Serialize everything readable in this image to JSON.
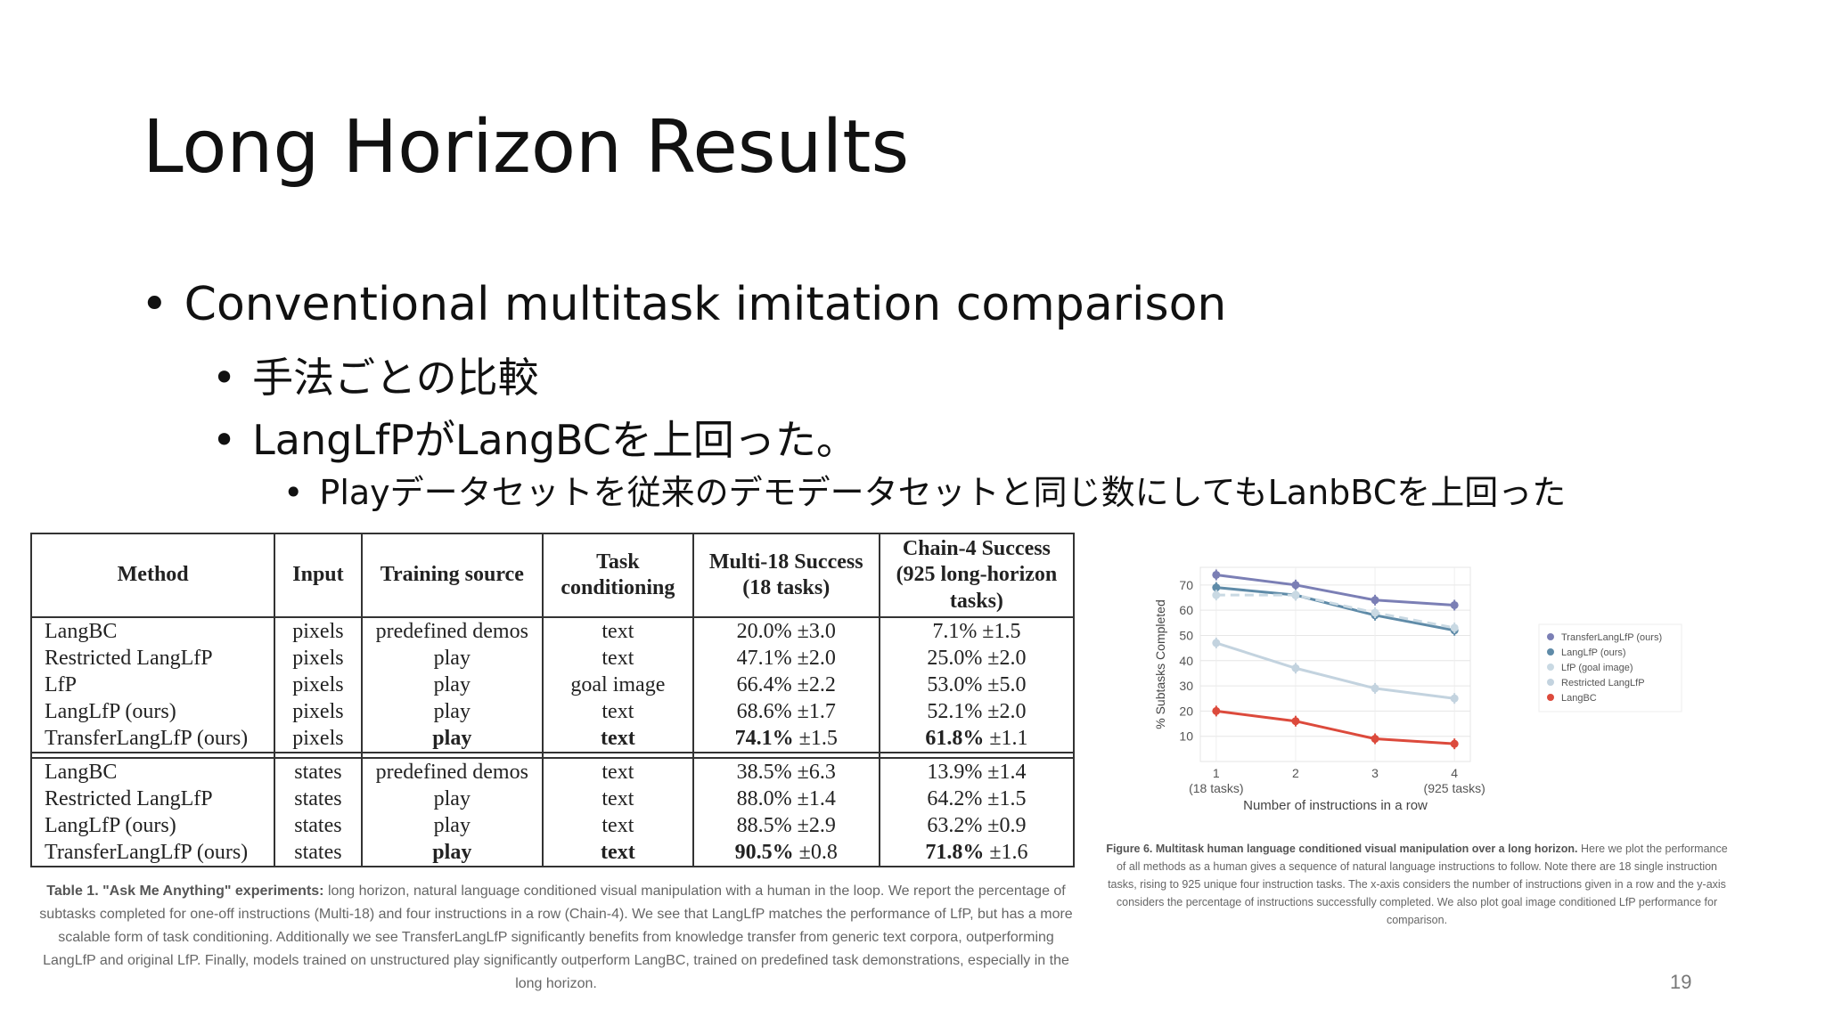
{
  "slide": {
    "title": "Long Horizon Results",
    "bullets": [
      "Conventional multitask imitation comparison",
      "手法ごとの比較",
      "LangLfPがLangBCを上回った。",
      "Playデータセットを従来のデモデータセットと同じ数にしてもLanbBCを上回った"
    ],
    "bullet_char": "•",
    "page_number": "19"
  },
  "table": {
    "headers": [
      "Method",
      "Input",
      "Training source",
      "Task conditioning",
      "Multi-18 Success (18 tasks)",
      "Chain-4 Success (925 long-horizon tasks)"
    ],
    "groups": [
      [
        [
          "LangBC",
          "pixels",
          "predefined demos",
          "text",
          "20.0% ±3.0",
          "7.1% ±1.5"
        ],
        [
          "Restricted LangLfP",
          "pixels",
          "play",
          "text",
          "47.1% ±2.0",
          "25.0% ±2.0"
        ],
        [
          "LfP",
          "pixels",
          "play",
          "goal image",
          "66.4% ±2.2",
          "53.0% ±5.0"
        ],
        [
          "LangLfP (ours)",
          "pixels",
          "play",
          "text",
          "68.6% ±1.7",
          "52.1% ±2.0"
        ],
        [
          "TransferLangLfP (ours)",
          "pixels",
          "play",
          "text",
          "74.1% ±1.5",
          "61.8% ±1.1"
        ]
      ],
      [
        [
          "LangBC",
          "states",
          "predefined demos",
          "text",
          "38.5% ±6.3",
          "13.9% ±1.4"
        ],
        [
          "Restricted LangLfP",
          "states",
          "play",
          "text",
          "88.0% ±1.4",
          "64.2% ±1.5"
        ],
        [
          "LangLfP (ours)",
          "states",
          "play",
          "text",
          "88.5% ±2.9",
          "63.2% ±0.9"
        ],
        [
          "TransferLangLfP (ours)",
          "states",
          "play",
          "text",
          "90.5% ±0.8",
          "71.8% ±1.6"
        ]
      ]
    ],
    "caption_lead": "Table 1. \"Ask Me Anything\" experiments:",
    "caption_body": " long horizon, natural language conditioned visual manipulation with a human in the loop. We report the percentage of subtasks completed for one-off instructions (Multi-18) and four instructions in a row (Chain-4). We see that LangLfP matches the performance of LfP, but has a more scalable form of task conditioning. Additionally we see TransferLangLfP significantly benefits from knowledge transfer from generic text corpora, outperforming LangLfP and original LfP. Finally, models trained on unstructured play significantly outperform LangBC, trained on predefined task demonstrations, especially in the long horizon."
  },
  "figure": {
    "caption_lead": "Figure 6. Multitask human language conditioned visual manipulation over a long horizon.",
    "caption_body": " Here we plot the performance of all methods as a human gives a sequence of natural language instructions to follow. Note there are 18 single instruction tasks, rising to 925 unique four instruction tasks. The x-axis considers the number of instructions given in a row and the y-axis considers the percentage of instructions successfully completed. We also plot goal image conditioned LfP performance for comparison."
  },
  "chart_data": {
    "type": "line",
    "xlabel": "Number of instructions in a row",
    "ylabel": "% Subtasks Completed",
    "x": [
      1,
      2,
      3,
      4
    ],
    "x_tick_labels": [
      "1",
      "2",
      "3",
      "4"
    ],
    "x_tick_sublabels": [
      "(18 tasks)",
      "",
      "",
      "(925 tasks)"
    ],
    "y_ticks": [
      10,
      20,
      30,
      40,
      50,
      60,
      70
    ],
    "ylim": [
      0,
      77
    ],
    "grid": true,
    "legend": "right",
    "series": [
      {
        "name": "TransferLangLfP (ours)",
        "color": "#7b7fb5",
        "dashed": false,
        "values": [
          74,
          70,
          64,
          62
        ]
      },
      {
        "name": "LangLfP (ours)",
        "color": "#5f8ba8",
        "dashed": false,
        "values": [
          69,
          66,
          58,
          52
        ]
      },
      {
        "name": "LfP (goal image)",
        "color": "#c9d9e3",
        "dashed": true,
        "values": [
          66,
          66,
          59,
          53
        ]
      },
      {
        "name": "Restricted LangLfP",
        "color": "#c3d3df",
        "dashed": false,
        "values": [
          47,
          37,
          29,
          25
        ]
      },
      {
        "name": "LangBC",
        "color": "#dc4a3c",
        "dashed": false,
        "values": [
          20,
          16,
          9,
          7
        ]
      }
    ]
  }
}
